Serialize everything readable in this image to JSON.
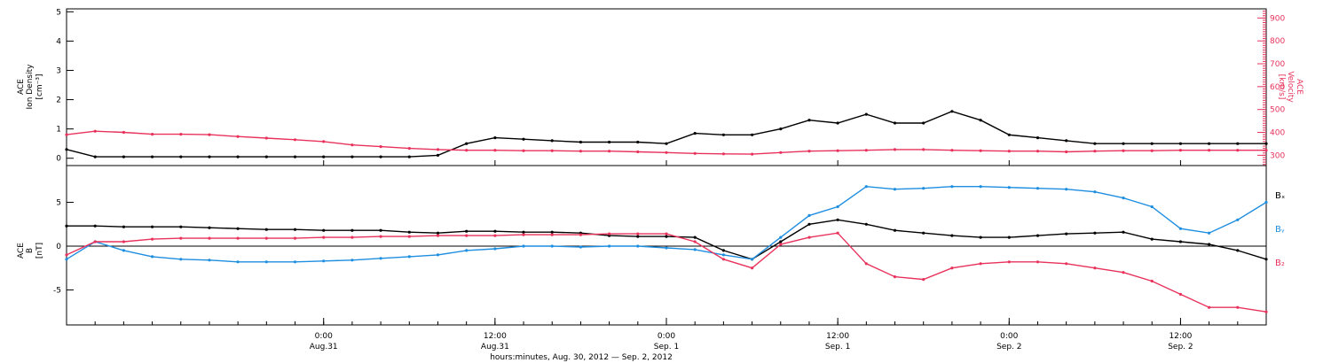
{
  "figure": {
    "xlabel": "hours:minutes, Aug. 30, 2012 — Sep.  2, 2012",
    "colors": {
      "black": "#000000",
      "magenta": "#e8325c",
      "blue": "#1e8ee0"
    }
  },
  "chart_data": [
    {
      "type": "scatter",
      "panel": "top",
      "ylabel_left": [
        "ACE",
        "Ion Density",
        "[cm⁻³]"
      ],
      "ylabel_right": [
        "ACE",
        "Velocity",
        "[km/s]"
      ],
      "ylim_left": [
        -0.25,
        5.1
      ],
      "yticks_left": [
        0,
        1,
        2,
        3,
        4,
        5
      ],
      "ylim_right": [
        255,
        940
      ],
      "yticks_right": [
        300,
        400,
        500,
        600,
        700,
        800,
        900
      ],
      "xlim_hours": [
        0,
        84
      ],
      "series": [
        {
          "color": "black",
          "axis": "left",
          "x": [
            0,
            2,
            4,
            6,
            8,
            10,
            12,
            14,
            16,
            18,
            20,
            22,
            24,
            26,
            28,
            30,
            32,
            34,
            36,
            38,
            40,
            42,
            44,
            46,
            48,
            50,
            52,
            54,
            56,
            58,
            60,
            62,
            64,
            66,
            68,
            70,
            72,
            74,
            76,
            78,
            80,
            82,
            84
          ],
          "y": [
            0.3,
            0.05,
            0.05,
            0.05,
            0.05,
            0.05,
            0.05,
            0.05,
            0.05,
            0.05,
            0.05,
            0.05,
            0.05,
            0.1,
            0.5,
            0.7,
            0.65,
            0.6,
            0.55,
            0.55,
            0.55,
            0.5,
            0.85,
            0.8,
            0.8,
            1.0,
            1.3,
            1.2,
            1.5,
            1.2,
            1.2,
            1.6,
            1.3,
            0.8,
            0.7,
            0.6,
            0.5,
            0.5,
            0.5,
            0.5,
            0.5,
            0.5,
            0.5
          ]
        },
        {
          "color": "magenta",
          "axis": "right",
          "x": [
            0,
            2,
            4,
            6,
            8,
            10,
            12,
            14,
            16,
            18,
            20,
            22,
            24,
            26,
            28,
            30,
            32,
            34,
            36,
            38,
            40,
            42,
            44,
            46,
            48,
            50,
            52,
            54,
            56,
            58,
            60,
            62,
            64,
            66,
            68,
            70,
            72,
            74,
            76,
            78,
            80,
            82,
            84
          ],
          "y": [
            390,
            405,
            400,
            392,
            392,
            390,
            382,
            375,
            368,
            360,
            345,
            338,
            330,
            325,
            322,
            322,
            320,
            320,
            318,
            318,
            315,
            312,
            308,
            306,
            305,
            312,
            318,
            320,
            322,
            325,
            325,
            322,
            320,
            318,
            318,
            315,
            318,
            320,
            320,
            322,
            322,
            322,
            322
          ]
        }
      ]
    },
    {
      "type": "scatter",
      "panel": "bottom",
      "ylabel_left": [
        "ACE",
        "B",
        "[nT]"
      ],
      "ylim": [
        -9,
        9.2
      ],
      "yticks": [
        -5,
        0,
        5
      ],
      "zero_line": true,
      "xlim_hours": [
        0,
        84
      ],
      "series": [
        {
          "name": "Bₓ",
          "color": "black",
          "x": [
            0,
            2,
            4,
            6,
            8,
            10,
            12,
            14,
            16,
            18,
            20,
            22,
            24,
            26,
            28,
            30,
            32,
            34,
            36,
            38,
            40,
            42,
            44,
            46,
            48,
            50,
            52,
            54,
            56,
            58,
            60,
            62,
            64,
            66,
            68,
            70,
            72,
            74,
            76,
            78,
            80,
            82,
            84
          ],
          "y": [
            2.3,
            2.3,
            2.2,
            2.2,
            2.2,
            2.1,
            2.0,
            1.9,
            1.9,
            1.8,
            1.8,
            1.8,
            1.6,
            1.5,
            1.7,
            1.7,
            1.6,
            1.6,
            1.5,
            1.2,
            1.1,
            1.1,
            1.0,
            -0.5,
            -1.5,
            0.5,
            2.5,
            3.0,
            2.5,
            1.8,
            1.5,
            1.2,
            1.0,
            1.0,
            1.2,
            1.4,
            1.5,
            1.6,
            0.8,
            0.5,
            0.2,
            -0.5,
            -1.5
          ]
        },
        {
          "name": "Bᵧ",
          "color": "blue",
          "x": [
            0,
            2,
            4,
            6,
            8,
            10,
            12,
            14,
            16,
            18,
            20,
            22,
            24,
            26,
            28,
            30,
            32,
            34,
            36,
            38,
            40,
            42,
            44,
            46,
            48,
            50,
            52,
            54,
            56,
            58,
            60,
            62,
            64,
            66,
            68,
            70,
            72,
            74,
            76,
            78,
            80,
            82,
            84
          ],
          "y": [
            -1.5,
            0.5,
            -0.5,
            -1.2,
            -1.5,
            -1.6,
            -1.8,
            -1.8,
            -1.8,
            -1.7,
            -1.6,
            -1.4,
            -1.2,
            -1.0,
            -0.5,
            -0.3,
            0.0,
            0.0,
            -0.1,
            0.0,
            0.0,
            -0.2,
            -0.4,
            -1.0,
            -1.5,
            1.0,
            3.5,
            4.5,
            6.8,
            6.5,
            6.6,
            6.8,
            6.8,
            6.7,
            6.6,
            6.5,
            6.2,
            5.5,
            4.5,
            2.0,
            1.5,
            3.0,
            5.0
          ]
        },
        {
          "name": "B₂",
          "color": "magenta",
          "x": [
            0,
            2,
            4,
            6,
            8,
            10,
            12,
            14,
            16,
            18,
            20,
            22,
            24,
            26,
            28,
            30,
            32,
            34,
            36,
            38,
            40,
            42,
            44,
            46,
            48,
            50,
            52,
            54,
            56,
            58,
            60,
            62,
            64,
            66,
            68,
            70,
            72,
            74,
            76,
            78,
            80,
            82,
            84
          ],
          "y": [
            -1.0,
            0.5,
            0.5,
            0.8,
            0.9,
            0.9,
            0.9,
            0.9,
            0.9,
            1.0,
            1.0,
            1.1,
            1.1,
            1.2,
            1.2,
            1.2,
            1.3,
            1.3,
            1.3,
            1.4,
            1.4,
            1.4,
            0.5,
            -1.5,
            -2.5,
            0.2,
            1.0,
            1.5,
            -2.0,
            -3.5,
            -3.8,
            -2.5,
            -2.0,
            -1.8,
            -1.8,
            -2.0,
            -2.5,
            -3.0,
            -4.0,
            -5.5,
            -7.0,
            -7.0,
            -7.5
          ]
        }
      ]
    }
  ],
  "x_ticks": [
    {
      "hour": 18,
      "line1": "0:00",
      "line2": "Aug.31"
    },
    {
      "hour": 30,
      "line1": "12:00",
      "line2": "Aug.31"
    },
    {
      "hour": 42,
      "line1": "0:00",
      "line2": "Sep. 1"
    },
    {
      "hour": 54,
      "line1": "12:00",
      "line2": "Sep. 1"
    },
    {
      "hour": 66,
      "line1": "0:00",
      "line2": "Sep. 2"
    },
    {
      "hour": 78,
      "line1": "12:00",
      "line2": "Sep. 2"
    }
  ]
}
